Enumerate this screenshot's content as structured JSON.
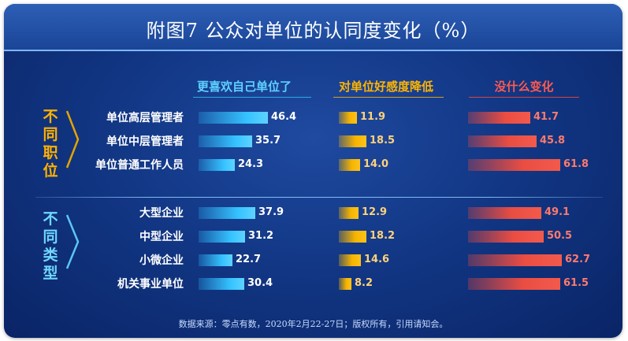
{
  "chart_data": {
    "type": "bar",
    "title": "附图7 公众对单位的认同度变化（%）",
    "groups": [
      {
        "label": "不同职位",
        "categories": [
          "单位高层管理者",
          "单位中层管理者",
          "单位普通工作人员"
        ]
      },
      {
        "label": "不同类型",
        "categories": [
          "大型企业",
          "中型企业",
          "小微企业",
          "机关事业单位"
        ]
      }
    ],
    "categories": [
      "单位高层管理者",
      "单位中层管理者",
      "单位普通工作人员",
      "大型企业",
      "中型企业",
      "小微企业",
      "机关事业单位"
    ],
    "series": [
      {
        "name": "更喜欢自己单位了",
        "values": [
          46.4,
          35.7,
          24.3,
          37.9,
          31.2,
          22.7,
          30.4
        ]
      },
      {
        "name": "对单位好感度降低",
        "values": [
          11.9,
          18.5,
          14.0,
          12.9,
          18.2,
          14.6,
          8.2
        ]
      },
      {
        "name": "没什么变化",
        "values": [
          41.7,
          45.8,
          61.8,
          49.1,
          50.5,
          62.7,
          61.5
        ]
      }
    ],
    "value_labels": [
      [
        "46.4",
        "35.7",
        "24.3",
        "37.9",
        "31.2",
        "22.7",
        "30.4"
      ],
      [
        "11.9",
        "18.5",
        "14.0",
        "12.9",
        "18.2",
        "14.6",
        "8.2"
      ],
      [
        "41.7",
        "45.8",
        "61.8",
        "49.1",
        "50.5",
        "62.7",
        "61.5"
      ]
    ],
    "colors": [
      "#29b6f6",
      "#f4b400",
      "#e8473f"
    ],
    "footnote": "数据来源：零点有数，2020年2月22-27日；版权所有，引用请知会。"
  }
}
